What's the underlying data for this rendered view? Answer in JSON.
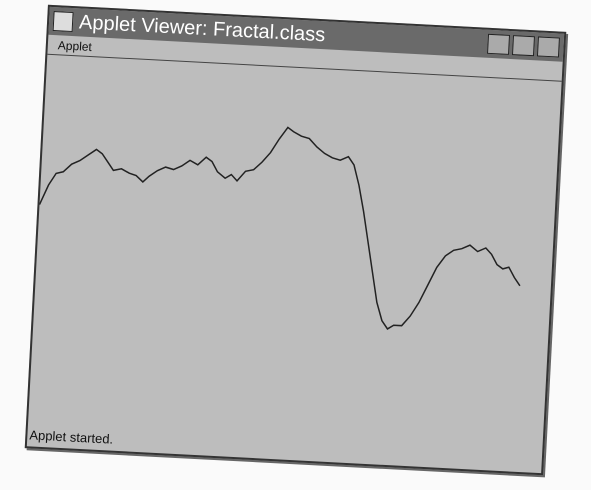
{
  "window": {
    "title": "Applet Viewer: Fractal.class",
    "menu": [
      "Applet"
    ],
    "status": "Applet started."
  }
}
